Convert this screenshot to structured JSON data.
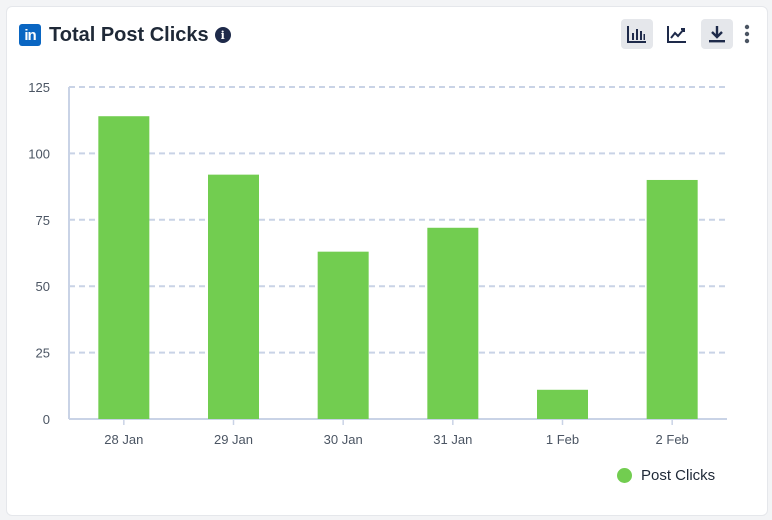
{
  "header": {
    "logo_text": "in",
    "title": "Total Post Clicks",
    "info_glyph": "i"
  },
  "toolbar": {
    "icons": [
      "bar-chart-icon",
      "line-chart-icon",
      "download-icon",
      "more-options-icon"
    ]
  },
  "colors": {
    "bar": "#72cd50",
    "grid": "#c9d3e6",
    "brand": "#0a66c2"
  },
  "chart_data": {
    "type": "bar",
    "categories": [
      "28 Jan",
      "29 Jan",
      "30 Jan",
      "31 Jan",
      "1 Feb",
      "2 Feb"
    ],
    "series": [
      {
        "name": "Post Clicks",
        "values": [
          114,
          92,
          63,
          72,
          11,
          90
        ]
      }
    ],
    "ylim": [
      0,
      125
    ],
    "yticks": [
      0,
      25,
      50,
      75,
      100,
      125
    ],
    "grid": true,
    "legend_position": "bottom-right"
  },
  "legend": {
    "label": "Post Clicks"
  }
}
